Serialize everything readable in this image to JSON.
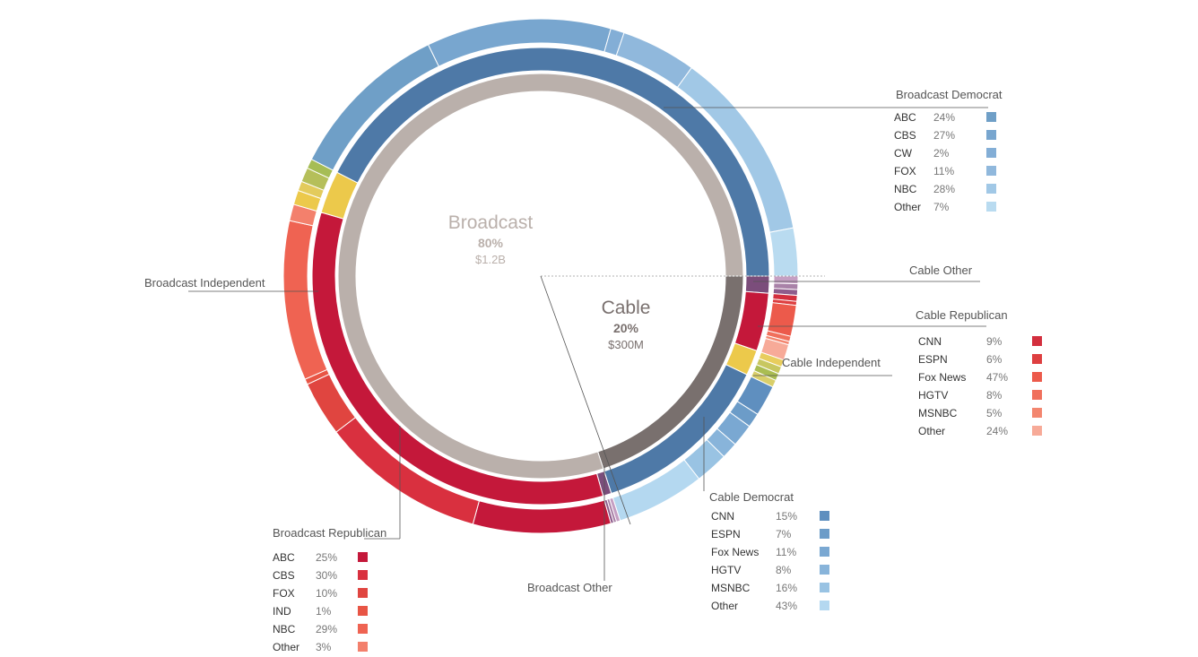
{
  "chart_data": {
    "type": "pie",
    "variant": "nested-donut",
    "rings": {
      "inner": [
        {
          "name": "Broadcast",
          "pct": "80%",
          "amount": "$1.2B",
          "share": 0.8,
          "color": "#bab0ab"
        },
        {
          "name": "Cable",
          "pct": "20%",
          "amount": "$300M",
          "share": 0.2,
          "color": "#79706e"
        }
      ],
      "middle": [
        {
          "group": "Cable Other",
          "parent": "Cable",
          "share": 0.012,
          "color": "#7b4d7b"
        },
        {
          "group": "Cable Republican",
          "parent": "Cable",
          "share": 0.041,
          "color": "#c4183a"
        },
        {
          "group": "Cable Independent",
          "parent": "Cable",
          "share": 0.018,
          "color": "#ecc94b"
        },
        {
          "group": "Cable Democrat",
          "parent": "Cable",
          "share": 0.129,
          "color": "#4e79a7"
        },
        {
          "group": "Broadcast Other",
          "parent": "Broadcast",
          "share": 0.006,
          "color": "#7b4d7b"
        },
        {
          "group": "Broadcast Republican",
          "parent": "Broadcast",
          "share": 0.339,
          "color": "#c4183a"
        },
        {
          "group": "Broadcast Independent",
          "parent": "Broadcast",
          "share": 0.03,
          "color": "#ecc94b"
        },
        {
          "group": "Broadcast Democrat",
          "parent": "Broadcast",
          "share": 0.425,
          "color": "#4e79a7"
        }
      ]
    },
    "groups": [
      {
        "name": "Broadcast Democrat",
        "entries": [
          {
            "label": "ABC",
            "pct": "24%",
            "value": 24,
            "color": "#6f9fc7"
          },
          {
            "label": "CBS",
            "pct": "27%",
            "value": 27,
            "color": "#78a6cf"
          },
          {
            "label": "CW",
            "pct": "2%",
            "value": 2,
            "color": "#83aed6"
          },
          {
            "label": "FOX",
            "pct": "11%",
            "value": 11,
            "color": "#90b8dc"
          },
          {
            "label": "NBC",
            "pct": "28%",
            "value": 28,
            "color": "#a1c8e6"
          },
          {
            "label": "Other",
            "pct": "7%",
            "value": 7,
            "color": "#b9dbf0"
          }
        ]
      },
      {
        "name": "Broadcast Republican",
        "entries": [
          {
            "label": "ABC",
            "pct": "25%",
            "value": 25,
            "color": "#c4183a"
          },
          {
            "label": "CBS",
            "pct": "30%",
            "value": 30,
            "color": "#d9303f"
          },
          {
            "label": "FOX",
            "pct": "10%",
            "value": 10,
            "color": "#e04540"
          },
          {
            "label": "IND",
            "pct": "1%",
            "value": 1,
            "color": "#e85545"
          },
          {
            "label": "NBC",
            "pct": "29%",
            "value": 29,
            "color": "#ef6352"
          },
          {
            "label": "Other",
            "pct": "3%",
            "value": 3,
            "color": "#f3806c"
          }
        ]
      },
      {
        "name": "Cable Democrat",
        "entries": [
          {
            "label": "CNN",
            "pct": "15%",
            "value": 15,
            "color": "#5f8fbf"
          },
          {
            "label": "ESPN",
            "pct": "7%",
            "value": 7,
            "color": "#6c9cc8"
          },
          {
            "label": "Fox News",
            "pct": "11%",
            "value": 11,
            "color": "#7aa8d2"
          },
          {
            "label": "HGTV",
            "pct": "8%",
            "value": 8,
            "color": "#88b4da"
          },
          {
            "label": "MSNBC",
            "pct": "16%",
            "value": 16,
            "color": "#99c3e3"
          },
          {
            "label": "Other",
            "pct": "43%",
            "value": 43,
            "color": "#b4d8f0"
          }
        ]
      },
      {
        "name": "Cable Republican",
        "entries": [
          {
            "label": "CNN",
            "pct": "9%",
            "value": 9,
            "color": "#d32f3e"
          },
          {
            "label": "ESPN",
            "pct": "6%",
            "value": 6,
            "color": "#de3f40"
          },
          {
            "label": "Fox News",
            "pct": "47%",
            "value": 47,
            "color": "#ec5a4b"
          },
          {
            "label": "HGTV",
            "pct": "8%",
            "value": 8,
            "color": "#f0705c"
          },
          {
            "label": "MSNBC",
            "pct": "5%",
            "value": 5,
            "color": "#f3866f"
          },
          {
            "label": "Other",
            "pct": "24%",
            "value": 24,
            "color": "#f7aa98"
          }
        ]
      },
      {
        "name": "Broadcast Independent",
        "entries": [
          {
            "label": "",
            "pct": "",
            "value": 30,
            "color": "#ecc94b"
          },
          {
            "label": "",
            "pct": "",
            "value": 20,
            "color": "#e3cb5c"
          },
          {
            "label": "",
            "pct": "",
            "value": 30,
            "color": "#b5bf5a"
          },
          {
            "label": "",
            "pct": "",
            "value": 20,
            "color": "#a6bd55"
          }
        ]
      },
      {
        "name": "Cable Independent",
        "entries": [
          {
            "label": "",
            "pct": "",
            "value": 25,
            "color": "#e8cd5d"
          },
          {
            "label": "",
            "pct": "",
            "value": 25,
            "color": "#c8c760"
          },
          {
            "label": "",
            "pct": "",
            "value": 25,
            "color": "#aabd52"
          },
          {
            "label": "",
            "pct": "",
            "value": 25,
            "color": "#d9cf6a"
          }
        ]
      },
      {
        "name": "Cable Other",
        "entries": [
          {
            "label": "",
            "pct": "",
            "value": 40,
            "color": "#c59fc3"
          },
          {
            "label": "",
            "pct": "",
            "value": 30,
            "color": "#a982a8"
          },
          {
            "label": "",
            "pct": "",
            "value": 30,
            "color": "#8e5c8c"
          }
        ]
      },
      {
        "name": "Broadcast Other",
        "entries": [
          {
            "label": "",
            "pct": "",
            "value": 40,
            "color": "#c59fc3"
          },
          {
            "label": "",
            "pct": "",
            "value": 30,
            "color": "#a982a8"
          },
          {
            "label": "",
            "pct": "",
            "value": 30,
            "color": "#8e5c8c"
          }
        ]
      }
    ],
    "labels": {
      "broadcast_democrat": "Broadcast Democrat",
      "broadcast_republican": "Broadcast Republican",
      "broadcast_independent": "Broadcast Independent",
      "broadcast_other": "Broadcast Other",
      "cable_democrat": "Cable Democrat",
      "cable_republican": "Cable Republican",
      "cable_independent": "Cable Independent",
      "cable_other": "Cable Other"
    }
  }
}
